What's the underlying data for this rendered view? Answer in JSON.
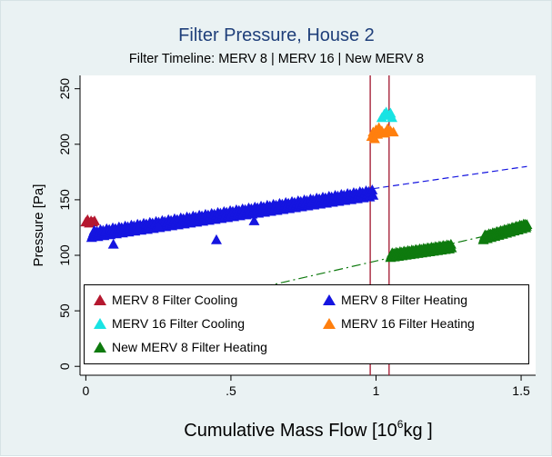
{
  "chart_data": {
    "type": "scatter",
    "title": "Filter Pressure, House 2",
    "subtitle": "Filter Timeline: MERV 8 | MERV 16 | New MERV 8",
    "xlabel_main": "Cumulative Mass Flow [10",
    "xlabel_sup": "6",
    "xlabel_tail": "kg ]",
    "ylabel": "Pressure [Pa]",
    "xlim": [
      -0.02,
      1.55
    ],
    "ylim": [
      -8,
      262
    ],
    "xticks": [
      0,
      0.5,
      1,
      1.5
    ],
    "xtick_labels": [
      "0",
      ".5",
      "1",
      "1.5"
    ],
    "yticks": [
      0,
      50,
      100,
      150,
      200,
      250
    ],
    "ytick_labels": [
      "0",
      "50",
      "100",
      "150",
      "200",
      "250"
    ],
    "grid": false,
    "legend_position": "bottom-inside",
    "vertical_lines_x": [
      0.98,
      1.045
    ],
    "series": [
      {
        "name": "MERV 8 Filter Cooling",
        "color": "#b5182f",
        "marker": "triangle",
        "points": [
          [
            0.0,
            130
          ],
          [
            0.006,
            132
          ],
          [
            0.012,
            129
          ],
          [
            0.018,
            131
          ],
          [
            0.024,
            130
          ],
          [
            0.03,
            131
          ]
        ]
      },
      {
        "name": "MERV 8 Filter Heating",
        "color": "#1515e0",
        "marker": "triangle",
        "band": {
          "x_start": 0.02,
          "x_end": 0.99,
          "y_start": 119,
          "y_end": 156,
          "count": 320,
          "spread": 3
        },
        "points": [
          [
            0.095,
            110
          ],
          [
            0.45,
            114
          ],
          [
            0.58,
            131
          ],
          [
            0.25,
            126
          ],
          [
            0.18,
            124
          ]
        ]
      },
      {
        "name": "MERV 16 Filter Cooling",
        "color": "#19e3e3",
        "marker": "triangle",
        "points": [
          [
            1.02,
            224
          ],
          [
            1.028,
            227
          ],
          [
            1.035,
            229
          ],
          [
            1.042,
            226
          ],
          [
            1.05,
            228
          ],
          [
            1.055,
            224
          ]
        ]
      },
      {
        "name": "MERV 16 Filter Heating",
        "color": "#ff7f0e",
        "marker": "triangle",
        "points": [
          [
            0.985,
            207
          ],
          [
            0.99,
            211
          ],
          [
            0.995,
            205
          ],
          [
            1.0,
            213
          ],
          [
            1.005,
            209
          ],
          [
            1.01,
            215
          ],
          [
            1.02,
            212
          ],
          [
            1.03,
            210
          ],
          [
            1.04,
            214
          ],
          [
            1.05,
            212
          ],
          [
            1.06,
            211
          ]
        ]
      },
      {
        "name": "New MERV 8 Filter Heating",
        "color": "#0e7a0e",
        "marker": "triangle",
        "bands": [
          {
            "x_start": 1.05,
            "x_end": 1.26,
            "y_start": 100,
            "y_end": 108,
            "count": 110,
            "spread": 2
          },
          {
            "x_start": 1.37,
            "x_end": 1.52,
            "y_start": 116,
            "y_end": 127,
            "count": 80,
            "spread": 2
          }
        ],
        "points": []
      }
    ],
    "fit_lines": [
      {
        "color": "#1515e0",
        "style": "dashed",
        "x": [
          0.99,
          1.52
        ],
        "y": [
          160,
          180
        ]
      },
      {
        "color": "#0e7a0e",
        "style": "dashdot",
        "x": [
          0.0,
          1.52
        ],
        "y": [
          35,
          126
        ]
      }
    ]
  },
  "legend": {
    "items": [
      {
        "label": "MERV 8 Filter Cooling",
        "color": "#b5182f"
      },
      {
        "label": "MERV 8 Filter Heating",
        "color": "#1515e0"
      },
      {
        "label": "MERV 16 Filter Cooling",
        "color": "#19e3e3"
      },
      {
        "label": "MERV 16 Filter Heating",
        "color": "#ff7f0e"
      },
      {
        "label": "New MERV 8 Filter Heating",
        "color": "#0e7a0e"
      }
    ]
  },
  "colors": {
    "background": "#eaf2f3",
    "plot_area": "#ffffff",
    "title": "#1f3f7a",
    "vertical_lines": "#a0142c"
  }
}
